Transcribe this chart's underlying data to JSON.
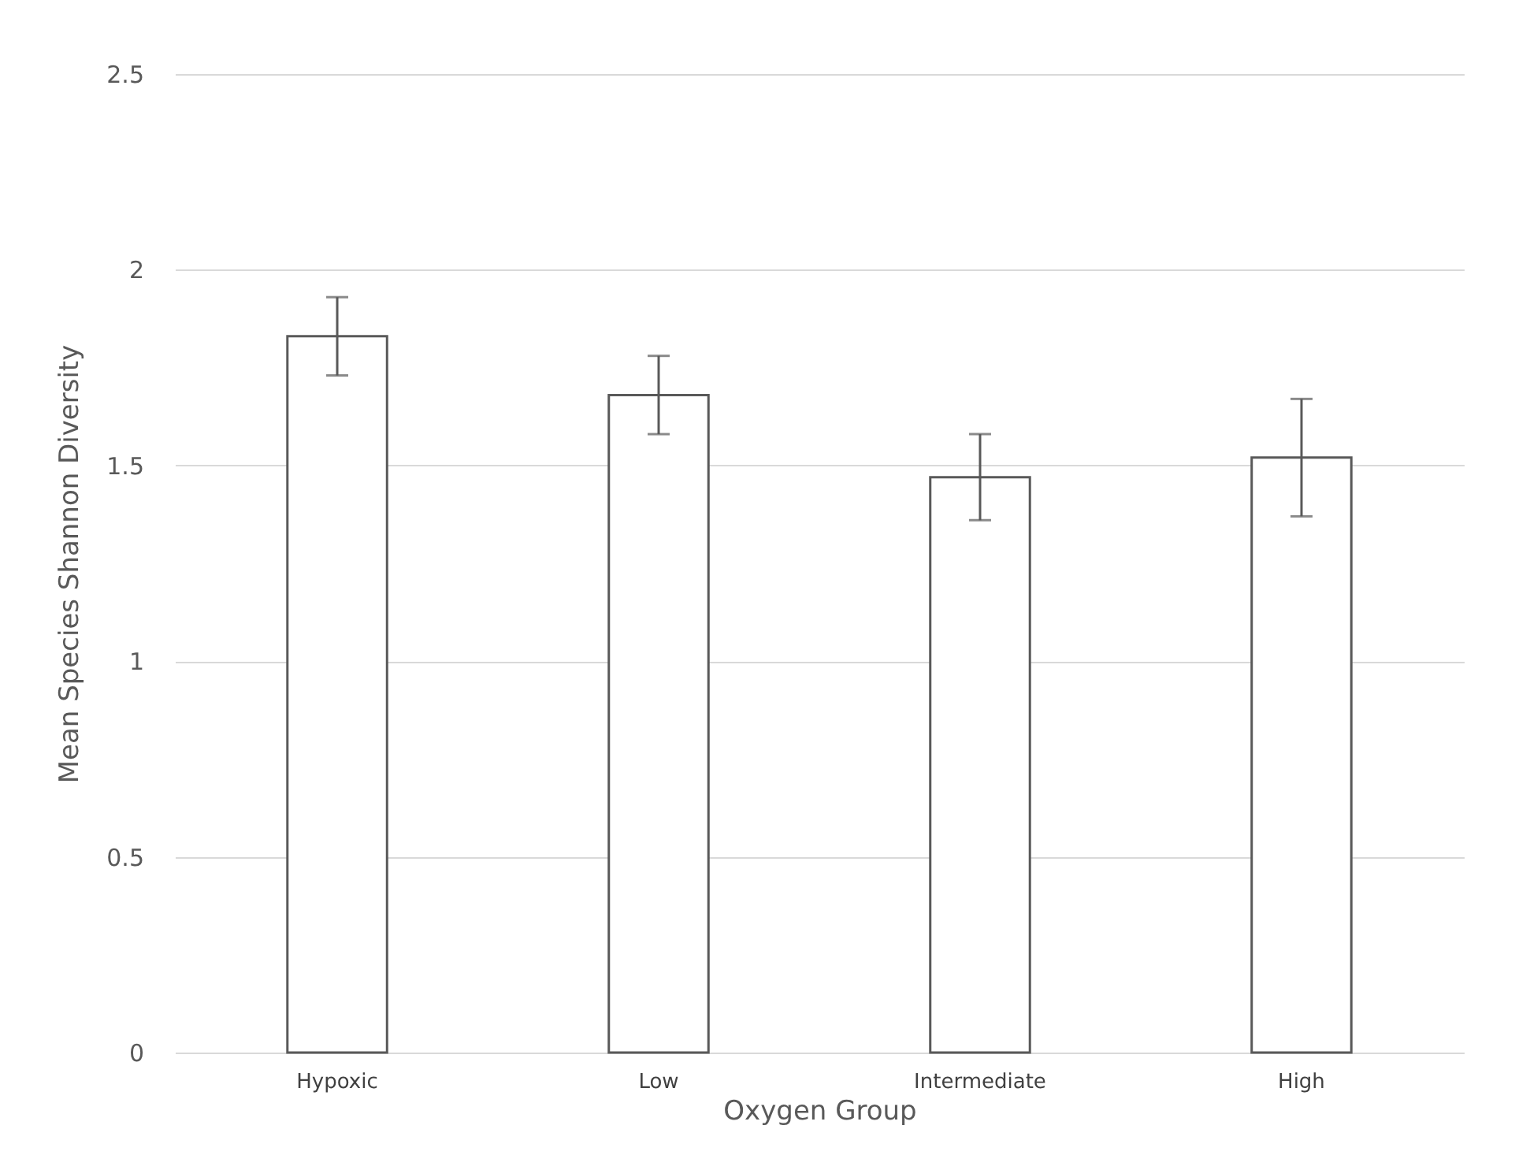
{
  "chart_data": {
    "type": "bar",
    "xlabel": "Oxygen Group",
    "ylabel": "Mean Species Shannon Diversity",
    "categories": [
      "Hypoxic",
      "Low",
      "Intermediate",
      "High"
    ],
    "values": [
      1.83,
      1.68,
      1.47,
      1.52
    ],
    "errors": [
      0.1,
      0.1,
      0.11,
      0.15
    ],
    "color": "#ffffff",
    "ylim": [
      0,
      2.5
    ],
    "yticks": [
      0,
      0.5,
      1,
      1.5,
      2,
      2.5
    ],
    "grid": "y"
  }
}
